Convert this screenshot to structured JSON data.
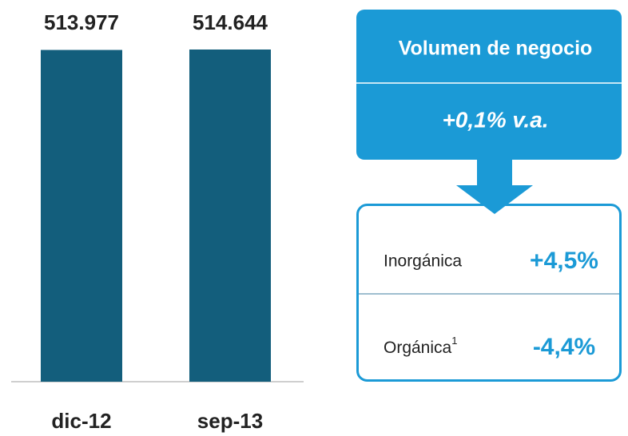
{
  "chart_data": {
    "type": "bar",
    "categories": [
      "dic-12",
      "sep-13"
    ],
    "values": [
      513977,
      514644
    ],
    "value_labels": [
      "513.977",
      "514.644"
    ],
    "color": "#135e7c"
  },
  "panel": {
    "title": "Volumen de negocio",
    "subtitle": "+0,1% v.a.",
    "items": [
      {
        "label": "Inorgánica",
        "value": "+4,5%"
      },
      {
        "label": "Orgánica",
        "superscript": "1",
        "value": "-4,4%"
      }
    ]
  }
}
